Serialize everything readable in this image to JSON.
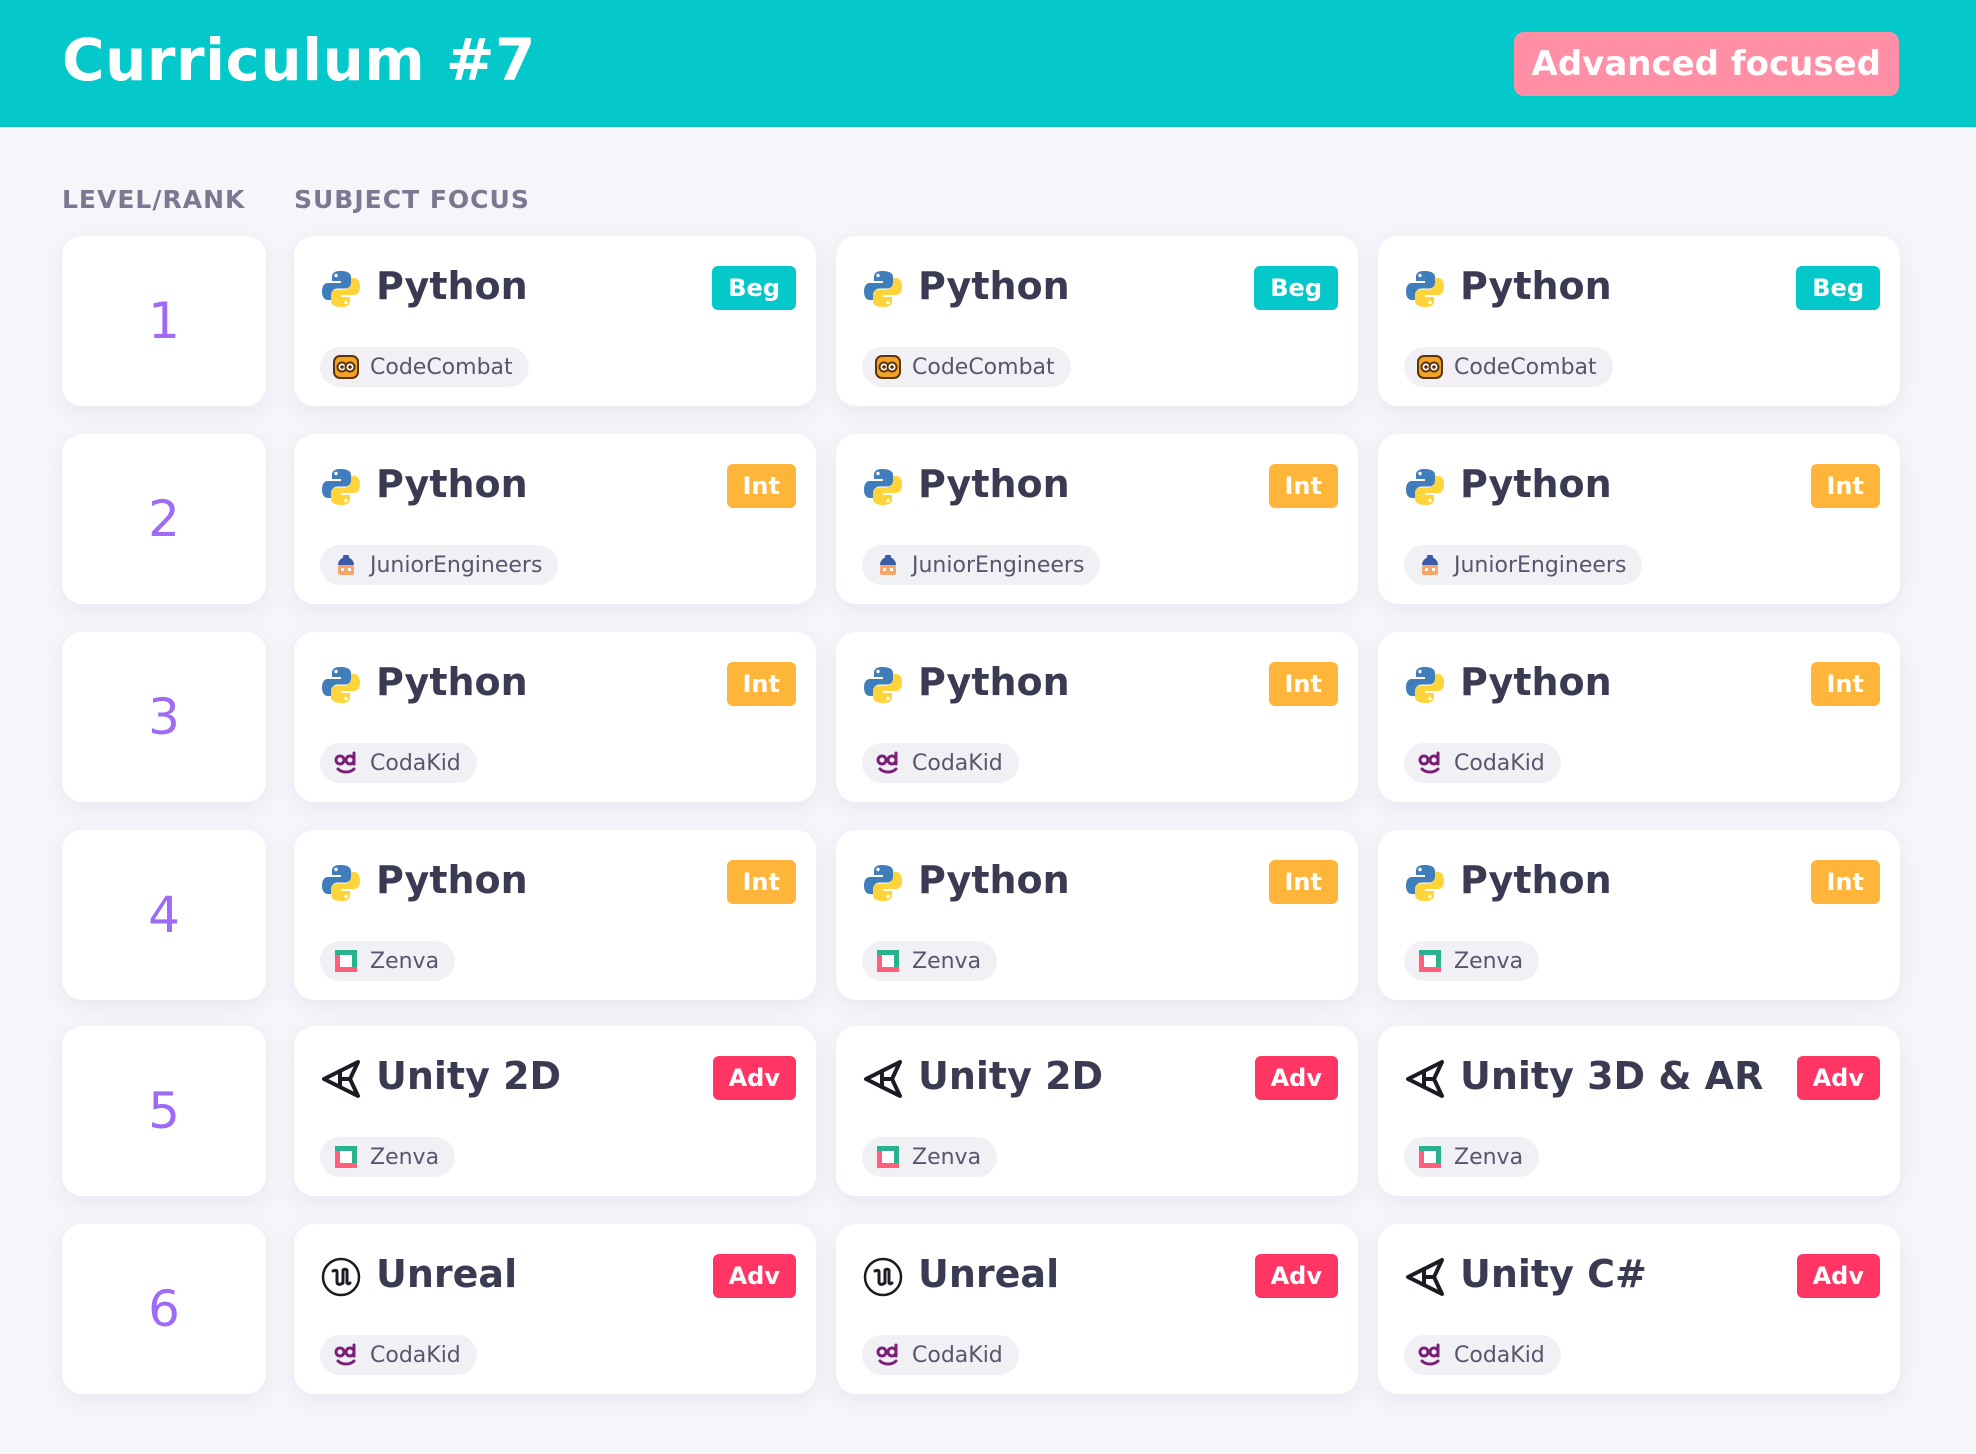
{
  "header": {
    "title": "Curriculum #7",
    "badge": "Advanced focused",
    "color": "#05c8cb",
    "badge_color": "#ff8fa5"
  },
  "columns": {
    "level_label": "LEVEL/RANK",
    "subject_label": "SUBJECT FOCUS"
  },
  "level_colors": {
    "Beg": "#05c8cb",
    "Int": "#ffb43a",
    "Adv": "#ff3563"
  },
  "rows": [
    {
      "rank": "1",
      "cards": [
        {
          "subject": "Python",
          "icon": "python-icon",
          "level": "Beg",
          "provider": "CodeCombat",
          "provider_icon": "codecombat-icon"
        },
        {
          "subject": "Python",
          "icon": "python-icon",
          "level": "Beg",
          "provider": "CodeCombat",
          "provider_icon": "codecombat-icon"
        },
        {
          "subject": "Python",
          "icon": "python-icon",
          "level": "Beg",
          "provider": "CodeCombat",
          "provider_icon": "codecombat-icon"
        }
      ]
    },
    {
      "rank": "2",
      "cards": [
        {
          "subject": "Python",
          "icon": "python-icon",
          "level": "Int",
          "provider": "JuniorEngineers",
          "provider_icon": "juniorengineers-icon"
        },
        {
          "subject": "Python",
          "icon": "python-icon",
          "level": "Int",
          "provider": "JuniorEngineers",
          "provider_icon": "juniorengineers-icon"
        },
        {
          "subject": "Python",
          "icon": "python-icon",
          "level": "Int",
          "provider": "JuniorEngineers",
          "provider_icon": "juniorengineers-icon"
        }
      ]
    },
    {
      "rank": "3",
      "cards": [
        {
          "subject": "Python",
          "icon": "python-icon",
          "level": "Int",
          "provider": "CodaKid",
          "provider_icon": "codakid-icon"
        },
        {
          "subject": "Python",
          "icon": "python-icon",
          "level": "Int",
          "provider": "CodaKid",
          "provider_icon": "codakid-icon"
        },
        {
          "subject": "Python",
          "icon": "python-icon",
          "level": "Int",
          "provider": "CodaKid",
          "provider_icon": "codakid-icon"
        }
      ]
    },
    {
      "rank": "4",
      "cards": [
        {
          "subject": "Python",
          "icon": "python-icon",
          "level": "Int",
          "provider": "Zenva",
          "provider_icon": "zenva-icon"
        },
        {
          "subject": "Python",
          "icon": "python-icon",
          "level": "Int",
          "provider": "Zenva",
          "provider_icon": "zenva-icon"
        },
        {
          "subject": "Python",
          "icon": "python-icon",
          "level": "Int",
          "provider": "Zenva",
          "provider_icon": "zenva-icon"
        }
      ]
    },
    {
      "rank": "5",
      "cards": [
        {
          "subject": "Unity 2D",
          "icon": "unity-icon",
          "level": "Adv",
          "provider": "Zenva",
          "provider_icon": "zenva-icon"
        },
        {
          "subject": "Unity 2D",
          "icon": "unity-icon",
          "level": "Adv",
          "provider": "Zenva",
          "provider_icon": "zenva-icon"
        },
        {
          "subject": "Unity 3D & AR",
          "icon": "unity-icon",
          "level": "Adv",
          "provider": "Zenva",
          "provider_icon": "zenva-icon"
        }
      ]
    },
    {
      "rank": "6",
      "cards": [
        {
          "subject": "Unreal",
          "icon": "unreal-icon",
          "level": "Adv",
          "provider": "CodaKid",
          "provider_icon": "codakid-icon"
        },
        {
          "subject": "Unreal",
          "icon": "unreal-icon",
          "level": "Adv",
          "provider": "CodaKid",
          "provider_icon": "codakid-icon"
        },
        {
          "subject": "Unity C#",
          "icon": "unity-icon",
          "level": "Adv",
          "provider": "CodaKid",
          "provider_icon": "codakid-icon"
        }
      ]
    }
  ]
}
